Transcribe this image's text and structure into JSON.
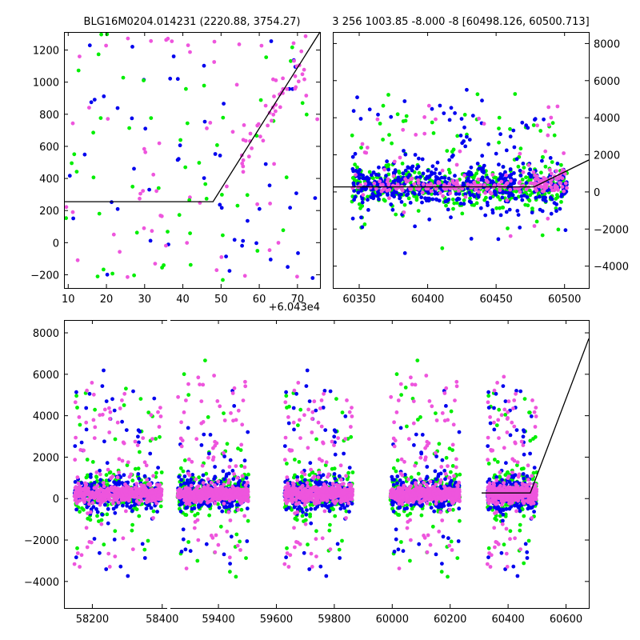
{
  "colors": {
    "green": "#00ee00",
    "blue": "#0000ee",
    "magenta": "#ee55dd",
    "line": "#000000",
    "frame": "#000000",
    "background": "#ffffff"
  },
  "chart_data": [
    {
      "id": "zoom-left",
      "type": "scatter",
      "title": "BLG16M0204.014231 (2220.88, 3754.27)",
      "x_offset_label": "+6.043e4",
      "xlim": [
        9,
        76
      ],
      "ylim": [
        -285,
        1310
      ],
      "xticks": [
        10,
        20,
        30,
        40,
        50,
        60,
        70
      ],
      "yticks": [
        -200,
        0,
        200,
        400,
        600,
        800,
        1000,
        1200
      ],
      "y_axis_side": "left",
      "grid": false,
      "model_line": [
        [
          9,
          253
        ],
        [
          48,
          253
        ],
        [
          76,
          1310
        ]
      ]
    },
    {
      "id": "zoom-right",
      "type": "scatter",
      "title": "3 256 1003.85 -8.000 -8 [60498.126, 60500.713]",
      "xlim": [
        60331,
        60518
      ],
      "ylim": [
        -5200,
        8600
      ],
      "xticks": [
        60350,
        60400,
        60450,
        60500
      ],
      "yticks": [
        -4000,
        -2000,
        0,
        2000,
        4000,
        6000,
        8000
      ],
      "y_axis_side": "right",
      "grid": false,
      "model_line": [
        [
          60331,
          253
        ],
        [
          60478,
          253
        ],
        [
          60518,
          1700
        ]
      ]
    },
    {
      "id": "full-lightcurve",
      "type": "scatter",
      "xlim": [
        58120,
        60680
      ],
      "ylim": [
        -5300,
        8600
      ],
      "xticks": [
        58200,
        58400,
        59400,
        59600,
        59800,
        60000,
        60200,
        60400,
        60600
      ],
      "yticks": [
        -4000,
        -2000,
        0,
        2000,
        4000,
        6000,
        8000
      ],
      "y_axis_side": "left",
      "grid": false,
      "axis_break_x": 58420,
      "broken_axis_right_start": 59230,
      "seasons": [
        [
          58150,
          58400
        ],
        [
          59260,
          59505
        ],
        [
          59630,
          59865
        ],
        [
          59995,
          60235
        ],
        [
          60330,
          60500
        ]
      ],
      "model_line": [
        [
          60310,
          253
        ],
        [
          60478,
          253
        ],
        [
          60680,
          7700
        ]
      ]
    }
  ]
}
